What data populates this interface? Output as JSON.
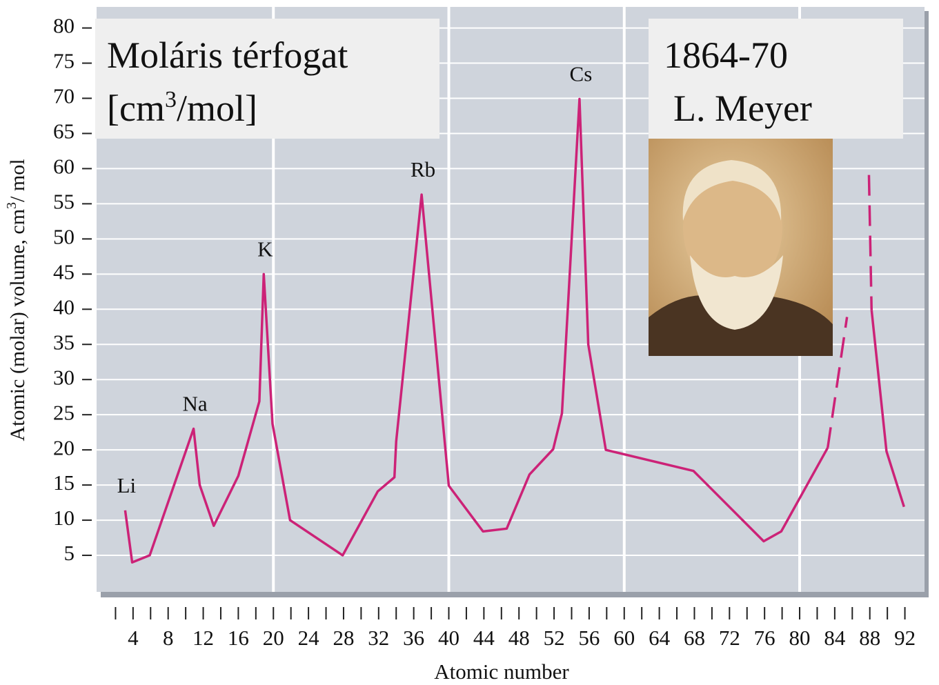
{
  "chart_data": {
    "type": "line",
    "title": "Moláris térfogat",
    "subtitle_parts": [
      "[cm",
      "3",
      "/mol]"
    ],
    "overlay_lines": [
      "1864-70",
      "L. Meyer"
    ],
    "x_label": "Atomic number",
    "y_label_parts": [
      "Atomic (molar) volume, cm",
      "3",
      "/ mol"
    ],
    "xlim": [
      0,
      94
    ],
    "ylim": [
      0,
      83
    ],
    "xticks": [
      4,
      8,
      12,
      16,
      20,
      24,
      28,
      32,
      36,
      40,
      44,
      48,
      52,
      56,
      60,
      64,
      68,
      72,
      76,
      80,
      84,
      88,
      92
    ],
    "xticks_minor": [
      2,
      6,
      10,
      14,
      18,
      22,
      26,
      30,
      34,
      38,
      42,
      46,
      50,
      54,
      58,
      62,
      66,
      70,
      74,
      78,
      82,
      86,
      90
    ],
    "xgrid": [
      20,
      40,
      60,
      80
    ],
    "yticks": [
      5,
      10,
      15,
      20,
      25,
      30,
      35,
      40,
      45,
      50,
      55,
      60,
      65,
      70,
      75,
      80
    ],
    "grid": true,
    "series": [
      {
        "color": "#cc2277",
        "dashed": false,
        "x": [
          3.1,
          3.9,
          5.9,
          10.9,
          11.6,
          13.2,
          16.0,
          18.4,
          18.9,
          19.9,
          21.9,
          27.9,
          31.9,
          33.8,
          34.0,
          36.9,
          40.0,
          43.9,
          46.6,
          49.2,
          51.9,
          52.9,
          54.9,
          55.9,
          57.9,
          67.9,
          75.9,
          77.9,
          83.2
        ],
        "values": [
          11.4,
          4.0,
          5.0,
          23.0,
          15.0,
          9.2,
          16.3,
          26.9,
          45.0,
          23.7,
          10.0,
          5.0,
          14.1,
          16.1,
          21.2,
          56.3,
          14.9,
          8.4,
          8.8,
          16.5,
          20.1,
          25.2,
          69.9,
          35.0,
          20.0,
          17.0,
          7.0,
          8.4,
          20.3
        ]
      },
      {
        "color": "#cc2277",
        "dashed": true,
        "x": [
          83.2,
          85.4
        ],
        "values": [
          20.3,
          38.9
        ]
      },
      {
        "color": "#cc2277",
        "dashed": true,
        "x": [
          87.9,
          88.2
        ],
        "values": [
          59.1,
          39.9
        ]
      },
      {
        "color": "#cc2277",
        "dashed": false,
        "x": [
          88.2,
          89.9,
          91.9
        ],
        "values": [
          39.9,
          19.8,
          11.9
        ]
      }
    ],
    "point_labels": [
      {
        "text": "Li",
        "x": 3.1
      },
      {
        "text": "Na",
        "x": 10.9
      },
      {
        "text": "K",
        "x": 18.9
      },
      {
        "text": "Rb",
        "x": 36.9
      },
      {
        "text": "Cs",
        "x": 54.9
      }
    ]
  }
}
